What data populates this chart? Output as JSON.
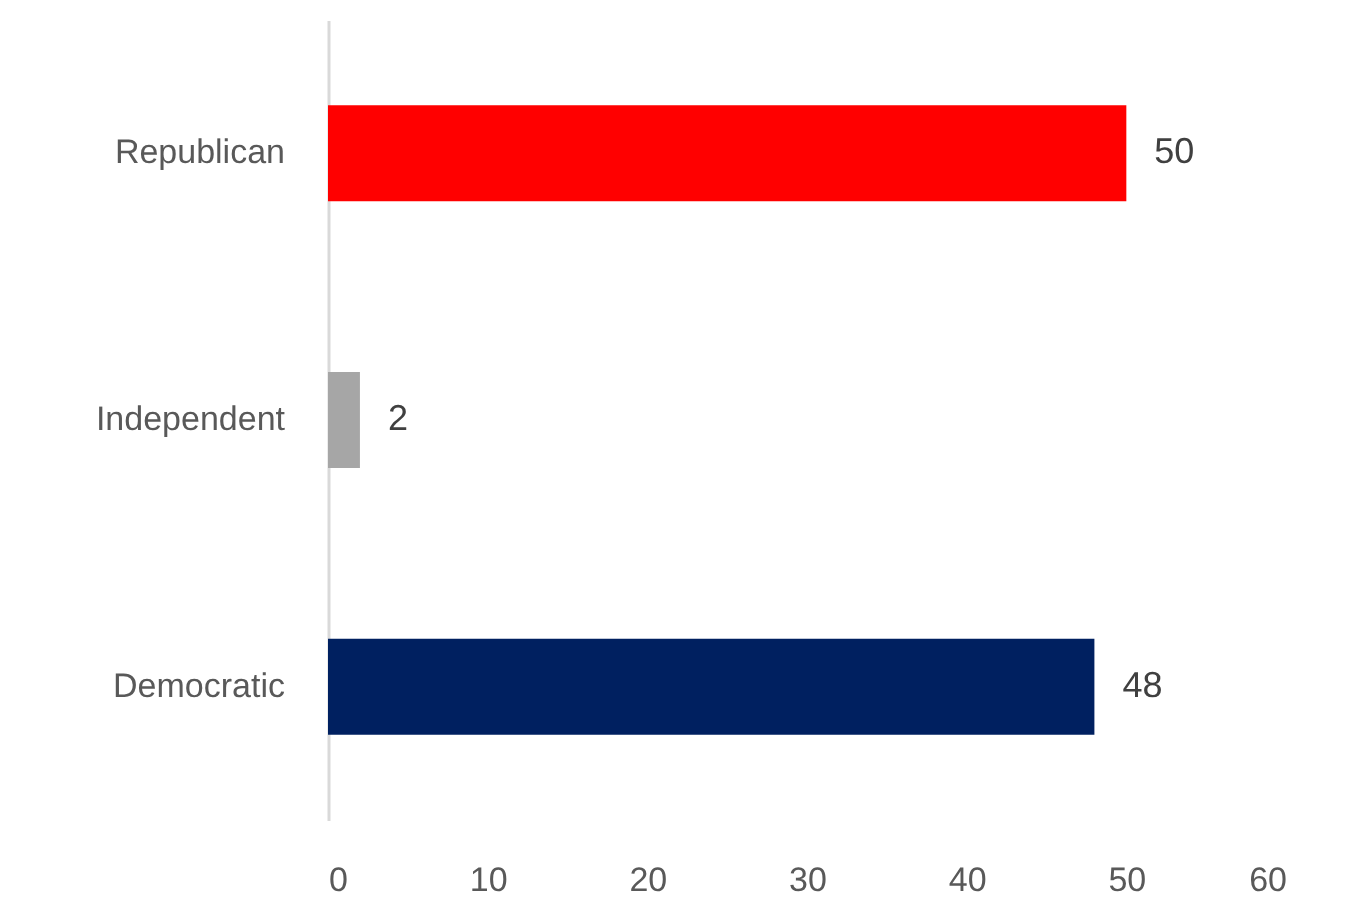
{
  "chart_data": {
    "type": "bar",
    "orientation": "horizontal",
    "categories": [
      "Republican",
      "Independent",
      "Democratic"
    ],
    "values": [
      50,
      2,
      48
    ],
    "colors": [
      "#ff0000",
      "#a6a6a6",
      "#002060"
    ],
    "xlim": [
      0,
      60
    ],
    "xticks": [
      0,
      10,
      20,
      30,
      40,
      50,
      60
    ],
    "grid": false,
    "data_labels": true
  }
}
